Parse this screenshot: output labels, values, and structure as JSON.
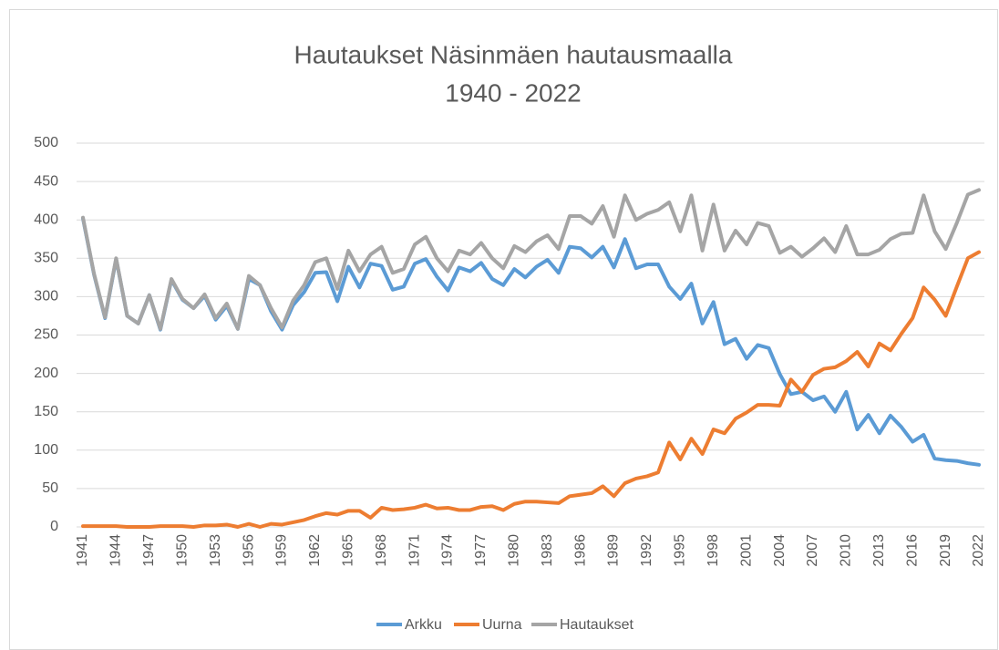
{
  "chart_data": {
    "type": "line",
    "title": "Hautaukset Näsinmäen hautausmaalla",
    "subtitle": "1940 - 2022",
    "categories": [
      "1941",
      null,
      null,
      "1944",
      null,
      null,
      "1947",
      null,
      null,
      "1950",
      null,
      null,
      "1953",
      null,
      null,
      "1956",
      null,
      null,
      "1959",
      null,
      null,
      "1962",
      null,
      null,
      "1965",
      null,
      null,
      "1968",
      null,
      null,
      "1971",
      null,
      null,
      "1974",
      null,
      null,
      "1977",
      null,
      null,
      "1980",
      null,
      null,
      "1983",
      null,
      null,
      "1986",
      null,
      null,
      "1989",
      null,
      null,
      "1992",
      null,
      null,
      "1995",
      null,
      null,
      "1998",
      null,
      null,
      "2001",
      null,
      null,
      "2004",
      null,
      null,
      "2007",
      null,
      null,
      "2010",
      null,
      null,
      "2013",
      null,
      null,
      "2016",
      null,
      null,
      "2019",
      null,
      null,
      "2022"
    ],
    "series": [
      {
        "name": "Arkku",
        "color": "#5b9bd5",
        "values": [
          402,
          329,
          272,
          349,
          275,
          265,
          302,
          257,
          322,
          296,
          285,
          301,
          270,
          288,
          258,
          323,
          315,
          281,
          257,
          289,
          306,
          331,
          332,
          294,
          339,
          312,
          343,
          340,
          309,
          313,
          343,
          349,
          326,
          308,
          338,
          333,
          344,
          323,
          315,
          336,
          325,
          339,
          348,
          331,
          365,
          363,
          351,
          365,
          338,
          375,
          337,
          342,
          342,
          313,
          297,
          317,
          265,
          293,
          238,
          245,
          219,
          237,
          233,
          199,
          173,
          176,
          165,
          170,
          150,
          176,
          127,
          146,
          122,
          145,
          130,
          111,
          120,
          89,
          87,
          86,
          83,
          81
        ]
      },
      {
        "name": "Uurna",
        "color": "#ed7d31",
        "values": [
          1,
          1,
          1,
          1,
          0,
          0,
          0,
          1,
          1,
          1,
          0,
          2,
          2,
          3,
          0,
          4,
          0,
          4,
          3,
          6,
          9,
          14,
          18,
          16,
          21,
          21,
          12,
          25,
          22,
          23,
          25,
          29,
          24,
          25,
          22,
          22,
          26,
          27,
          22,
          30,
          33,
          33,
          32,
          31,
          40,
          42,
          44,
          53,
          40,
          57,
          63,
          66,
          71,
          110,
          88,
          115,
          95,
          127,
          122,
          141,
          149,
          159,
          159,
          158,
          192,
          176,
          198,
          206,
          208,
          216,
          228,
          209,
          239,
          230,
          252,
          272,
          312,
          296,
          275,
          313,
          350,
          358
        ]
      },
      {
        "name": "Hautaukset",
        "color": "#a5a5a5",
        "values": [
          403,
          330,
          273,
          350,
          275,
          265,
          302,
          258,
          323,
          297,
          285,
          303,
          272,
          291,
          258,
          327,
          315,
          285,
          260,
          295,
          315,
          345,
          350,
          310,
          360,
          333,
          355,
          365,
          331,
          336,
          368,
          378,
          350,
          333,
          360,
          355,
          370,
          350,
          337,
          366,
          358,
          372,
          380,
          362,
          405,
          405,
          395,
          418,
          378,
          432,
          400,
          408,
          413,
          423,
          385,
          432,
          360,
          420,
          360,
          386,
          368,
          396,
          392,
          357,
          365,
          352,
          363,
          376,
          358,
          392,
          355,
          355,
          361,
          375,
          382,
          383,
          432,
          385,
          362,
          396,
          433,
          439
        ]
      }
    ],
    "ylim": [
      0,
      500
    ],
    "yticks": [
      0,
      50,
      100,
      150,
      200,
      250,
      300,
      350,
      400,
      450,
      500
    ],
    "grid": true,
    "legend": "bottom"
  }
}
